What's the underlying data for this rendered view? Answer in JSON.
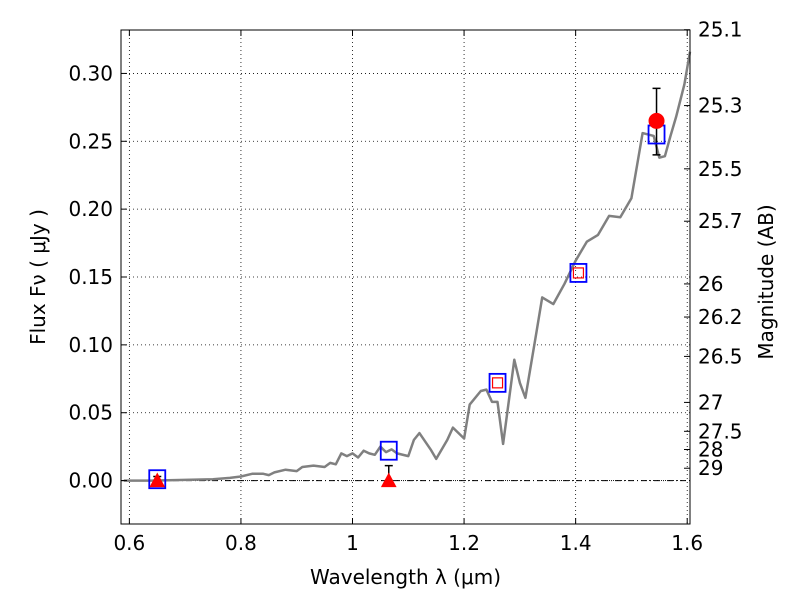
{
  "chart_data": {
    "type": "line",
    "xlabel": "Wavelength  λ (μm)",
    "ylabel": "Flux  Fν  ( μJy )",
    "y2label": "Magnitude (AB)",
    "xlim": [
      0.585,
      1.605
    ],
    "ylim": [
      -0.032,
      0.332
    ],
    "grid": true,
    "x_ticks": [
      0.6,
      0.8,
      1.0,
      1.2,
      1.4,
      1.6
    ],
    "x_tick_labels": [
      "0.6",
      "0.8",
      "1",
      "1.2",
      "1.4",
      "1.6"
    ],
    "y_ticks": [
      0.0,
      0.05,
      0.1,
      0.15,
      0.2,
      0.25,
      0.3
    ],
    "y_tick_labels": [
      "0.00",
      "0.05",
      "0.10",
      "0.15",
      "0.20",
      "0.25",
      "0.30"
    ],
    "y2_ticks": [
      {
        "label": "25.1",
        "flux": 0.3322
      },
      {
        "label": "25.3",
        "flux": 0.2763
      },
      {
        "label": "25.5",
        "flux": 0.2297
      },
      {
        "label": "25.7",
        "flux": 0.1911
      },
      {
        "label": "26",
        "flux": 0.1449
      },
      {
        "label": "26.2",
        "flux": 0.1205
      },
      {
        "label": "26.5",
        "flux": 0.0915
      },
      {
        "label": "27",
        "flux": 0.0576
      },
      {
        "label": "27.5",
        "flux": 0.0363
      },
      {
        "label": "28",
        "flux": 0.0229
      },
      {
        "label": "29",
        "flux": 0.0091
      }
    ],
    "colors": {
      "model": "#808080",
      "square": "#0000ff",
      "marker": "#ff0000",
      "errorbar": "#000000",
      "zero_line": "#000000"
    },
    "series": [
      {
        "kind": "model-spectrum",
        "points": [
          [
            0.59,
            0.0
          ],
          [
            0.64,
            0.0
          ],
          [
            0.7,
            0.0005
          ],
          [
            0.75,
            0.001
          ],
          [
            0.78,
            0.002
          ],
          [
            0.8,
            0.003
          ],
          [
            0.82,
            0.005
          ],
          [
            0.84,
            0.005
          ],
          [
            0.85,
            0.004
          ],
          [
            0.86,
            0.006
          ],
          [
            0.88,
            0.008
          ],
          [
            0.9,
            0.007
          ],
          [
            0.91,
            0.01
          ],
          [
            0.93,
            0.011
          ],
          [
            0.95,
            0.01
          ],
          [
            0.96,
            0.013
          ],
          [
            0.97,
            0.012
          ],
          [
            0.98,
            0.02
          ],
          [
            0.99,
            0.018
          ],
          [
            1.0,
            0.02
          ],
          [
            1.01,
            0.017
          ],
          [
            1.02,
            0.022
          ],
          [
            1.03,
            0.02
          ],
          [
            1.04,
            0.019
          ],
          [
            1.05,
            0.025
          ],
          [
            1.06,
            0.021
          ],
          [
            1.07,
            0.023
          ],
          [
            1.08,
            0.02
          ],
          [
            1.1,
            0.018
          ],
          [
            1.11,
            0.03
          ],
          [
            1.12,
            0.035
          ],
          [
            1.14,
            0.023
          ],
          [
            1.15,
            0.016
          ],
          [
            1.17,
            0.03
          ],
          [
            1.18,
            0.039
          ],
          [
            1.2,
            0.031
          ],
          [
            1.21,
            0.056
          ],
          [
            1.23,
            0.066
          ],
          [
            1.24,
            0.067
          ],
          [
            1.25,
            0.058
          ],
          [
            1.26,
            0.058
          ],
          [
            1.27,
            0.027
          ],
          [
            1.29,
            0.089
          ],
          [
            1.3,
            0.072
          ],
          [
            1.31,
            0.061
          ],
          [
            1.33,
            0.11
          ],
          [
            1.34,
            0.135
          ],
          [
            1.36,
            0.13
          ],
          [
            1.38,
            0.145
          ],
          [
            1.4,
            0.162
          ],
          [
            1.42,
            0.176
          ],
          [
            1.44,
            0.181
          ],
          [
            1.46,
            0.195
          ],
          [
            1.48,
            0.194
          ],
          [
            1.5,
            0.208
          ],
          [
            1.52,
            0.256
          ],
          [
            1.54,
            0.254
          ],
          [
            1.55,
            0.238
          ],
          [
            1.56,
            0.239
          ],
          [
            1.57,
            0.254
          ],
          [
            1.58,
            0.268
          ],
          [
            1.595,
            0.292
          ],
          [
            1.605,
            0.316
          ]
        ]
      },
      {
        "kind": "model-bandpass-squares",
        "points": [
          [
            0.65,
            0.001
          ],
          [
            1.065,
            0.022
          ],
          [
            1.26,
            0.072
          ],
          [
            1.405,
            0.153
          ],
          [
            1.545,
            0.255
          ]
        ]
      },
      {
        "kind": "observed-detections",
        "points": [
          [
            1.26,
            0.072
          ],
          [
            1.405,
            0.153
          ],
          [
            1.545,
            0.265
          ]
        ],
        "sizes": [
          "small",
          "small",
          "large"
        ],
        "errors": [
          {
            "x": 1.545,
            "lo": 0.24,
            "hi": 0.289
          }
        ]
      },
      {
        "kind": "observed-limits",
        "points": [
          [
            0.65,
            0.0
          ],
          [
            1.065,
            0.0
          ]
        ],
        "errors": [
          {
            "x": 0.65,
            "lo": -0.001,
            "hi": 0.003
          },
          {
            "x": 1.065,
            "lo": 0.0,
            "hi": 0.011
          }
        ]
      }
    ]
  }
}
